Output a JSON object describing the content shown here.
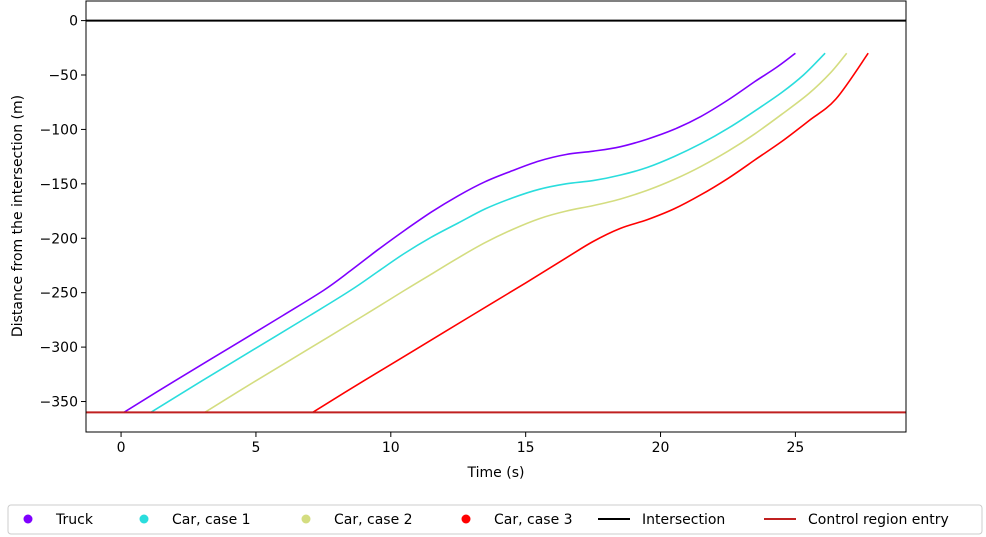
{
  "chart_data": {
    "type": "line",
    "xlabel": "Time (s)",
    "ylabel": "Distance from the intersection (m)",
    "xlim": [
      -1.3,
      29.1
    ],
    "ylim": [
      -378,
      18
    ],
    "xticks": [
      0,
      5,
      10,
      15,
      20,
      25
    ],
    "yticks": [
      0,
      -50,
      -100,
      -150,
      -200,
      -250,
      -300,
      -350
    ],
    "xtick_labels": [
      "0",
      "5",
      "10",
      "15",
      "20",
      "25"
    ],
    "ytick_labels": [
      "0",
      "−50",
      "−100",
      "−150",
      "−200",
      "−250",
      "−300",
      "−350"
    ],
    "grid": false,
    "legend_position": "bottom",
    "series": [
      {
        "name": "Truck",
        "color": "#7f00ff",
        "marker": "dot",
        "x": [
          0.1,
          2,
          4,
          6,
          7.5,
          8.5,
          9.5,
          10.5,
          11.5,
          12.5,
          13.5,
          14.5,
          15.5,
          16.5,
          17.5,
          18.5,
          19.5,
          20.5,
          21.5,
          22.5,
          23.5,
          24.3,
          25.0
        ],
        "y": [
          -360,
          -331,
          -301,
          -271,
          -248,
          -230,
          -211,
          -193,
          -176,
          -161,
          -148,
          -138,
          -129,
          -123,
          -120,
          -116,
          -109,
          -100,
          -88,
          -73,
          -56,
          -43,
          -30
        ]
      },
      {
        "name": "Car, case 1",
        "color": "#2adddd",
        "marker": "dot",
        "x": [
          1.1,
          3,
          5,
          7,
          8.5,
          9.5,
          10.5,
          11.5,
          12.5,
          13.5,
          14.5,
          15.5,
          16.5,
          17.5,
          18.5,
          19.5,
          20.5,
          21.5,
          22.5,
          23.5,
          24.5,
          25.3,
          26.1
        ],
        "y": [
          -360,
          -331,
          -301,
          -271,
          -248,
          -231,
          -214,
          -199,
          -186,
          -173,
          -163,
          -155,
          -150,
          -147,
          -142,
          -135,
          -125,
          -113,
          -99,
          -83,
          -66,
          -50,
          -30
        ]
      },
      {
        "name": "Car, case 2",
        "color": "#d4dd80",
        "marker": "dot",
        "x": [
          3.1,
          5,
          7,
          9,
          10.5,
          11.5,
          12.5,
          13.5,
          14.5,
          15.5,
          16.5,
          17.5,
          18.5,
          19.5,
          20.5,
          21.5,
          22.5,
          23.5,
          24.5,
          25.5,
          26.3,
          26.9
        ],
        "y": [
          -360,
          -331,
          -301,
          -271,
          -248,
          -233,
          -218,
          -204,
          -192,
          -182,
          -175,
          -170,
          -164,
          -156,
          -146,
          -134,
          -120,
          -104,
          -86,
          -67,
          -48,
          -30
        ]
      },
      {
        "name": "Car, case 3",
        "color": "#ff0000",
        "marker": "dot",
        "x": [
          7.1,
          9,
          11,
          13,
          15,
          16.5,
          17.5,
          18.5,
          19.5,
          20.5,
          21.5,
          22.5,
          23.5,
          24.5,
          25.5,
          26.5,
          27.7
        ],
        "y": [
          -360,
          -331,
          -301,
          -271,
          -241,
          -218,
          -203,
          -191,
          -183,
          -173,
          -160,
          -145,
          -128,
          -111,
          -92,
          -72,
          -30
        ]
      },
      {
        "name": "Intersection",
        "color": "#000000",
        "marker": "line",
        "x": [
          -1.3,
          29.1
        ],
        "y": [
          0,
          0
        ]
      },
      {
        "name": "Control region entry",
        "color": "#c02020",
        "marker": "line",
        "x": [
          -1.3,
          29.1
        ],
        "y": [
          -360,
          -360
        ]
      }
    ]
  }
}
